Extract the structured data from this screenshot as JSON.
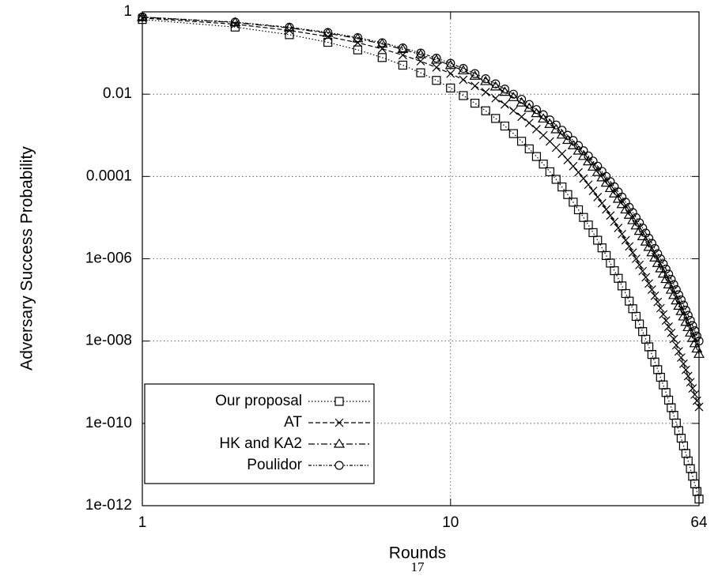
{
  "chart_data": {
    "type": "line",
    "x_label": "Rounds",
    "y_label": "Adversary Success Probability",
    "page_number": "17",
    "log_x": true,
    "log_y": true,
    "grid": true,
    "legend_position": "lower left",
    "xlim": [
      1,
      64
    ],
    "xticks": [
      1,
      10,
      64
    ],
    "ylim": [
      1e-12,
      1
    ],
    "yticks": [
      1,
      0.01,
      0.0001,
      {
        "value": 1e-06,
        "label": "1e-006"
      },
      {
        "value": 1e-08,
        "label": "1e-008"
      },
      {
        "value": 1e-10,
        "label": "1e-010"
      },
      {
        "value": 1e-12,
        "label": "1e-012"
      }
    ],
    "x": [
      1,
      2,
      3,
      4,
      5,
      6,
      7,
      8,
      9,
      10,
      11,
      12,
      13,
      14,
      15,
      16,
      17,
      18,
      19,
      20,
      21,
      22,
      23,
      24,
      25,
      26,
      27,
      28,
      29,
      30,
      31,
      32,
      33,
      34,
      35,
      36,
      37,
      38,
      39,
      40,
      41,
      42,
      43,
      44,
      45,
      46,
      47,
      48,
      49,
      50,
      51,
      52,
      53,
      54,
      55,
      56,
      57,
      58,
      59,
      60,
      61,
      62,
      63,
      64
    ],
    "series": [
      {
        "name": "Our proposal",
        "color": "#000000",
        "dash": "1.5 2.5",
        "marker": "square",
        "values": [
          0.653,
          0.427,
          0.279,
          0.182,
          0.119,
          0.0776,
          0.0507,
          0.0331,
          0.0216,
          0.0141,
          0.00923,
          0.00603,
          0.00394,
          0.00257,
          0.00168,
          0.0011,
          0.000716,
          0.000468,
          0.000305,
          0.0002,
          0.00013,
          8.51e-05,
          5.56e-05,
          3.63e-05,
          2.37e-05,
          1.55e-05,
          1.01e-05,
          6.61e-06,
          4.32e-06,
          2.82e-06,
          1.84e-06,
          1.2e-06,
          7.85e-07,
          5.13e-07,
          3.35e-07,
          2.19e-07,
          1.43e-07,
          9.33e-08,
          6.1e-08,
          3.98e-08,
          2.6e-08,
          1.7e-08,
          1.11e-08,
          7.24e-09,
          4.73e-09,
          3.09e-09,
          2.02e-09,
          1.32e-09,
          8.61e-10,
          5.62e-10,
          3.67e-10,
          2.4e-10,
          1.57e-10,
          1.02e-10,
          6.68e-11,
          4.37e-11,
          2.85e-11,
          1.86e-11,
          1.22e-11,
          7.94e-12,
          5.19e-12,
          3.39e-12,
          2.21e-12,
          1.45e-12
        ]
      },
      {
        "name": "AT",
        "color": "#000000",
        "dash": "6 3",
        "marker": "cross",
        "values": [
          0.708,
          0.501,
          0.355,
          0.251,
          0.178,
          0.126,
          0.0891,
          0.0631,
          0.0447,
          0.0316,
          0.0224,
          0.0158,
          0.0112,
          0.00794,
          0.00562,
          0.00398,
          0.00282,
          0.002,
          0.00141,
          0.001,
          0.000708,
          0.000501,
          0.000355,
          0.000251,
          0.000178,
          0.000126,
          8.91e-05,
          6.31e-05,
          4.47e-05,
          3.16e-05,
          2.24e-05,
          1.58e-05,
          1.12e-05,
          7.94e-06,
          5.62e-06,
          3.98e-06,
          2.82e-06,
          2e-06,
          1.41e-06,
          1e-06,
          7.08e-07,
          5.01e-07,
          3.55e-07,
          2.51e-07,
          1.78e-07,
          1.26e-07,
          8.91e-08,
          6.31e-08,
          4.47e-08,
          3.16e-08,
          2.24e-08,
          1.58e-08,
          1.12e-08,
          7.94e-09,
          5.62e-09,
          3.98e-09,
          2.82e-09,
          2e-09,
          1.41e-09,
          1e-09,
          7.08e-10,
          5.01e-10,
          3.55e-10,
          2.51e-10
        ]
      },
      {
        "name": "HK and KA2",
        "color": "#000000",
        "dash": "8 3 2 3",
        "marker": "triangle",
        "values": [
          0.741,
          0.55,
          0.407,
          0.302,
          0.224,
          0.166,
          0.123,
          0.0912,
          0.0676,
          0.0501,
          0.0372,
          0.0275,
          0.0204,
          0.0151,
          0.0112,
          0.00832,
          0.00617,
          0.00457,
          0.00339,
          0.00251,
          0.00186,
          0.00138,
          0.00102,
          0.000759,
          0.000562,
          0.000417,
          0.000309,
          0.000229,
          0.00017,
          0.000126,
          9.33e-05,
          6.92e-05,
          5.13e-05,
          3.8e-05,
          2.82e-05,
          2.09e-05,
          1.55e-05,
          1.15e-05,
          8.51e-06,
          6.31e-06,
          4.68e-06,
          3.47e-06,
          2.57e-06,
          1.91e-06,
          1.41e-06,
          1.05e-06,
          7.76e-07,
          5.75e-07,
          4.27e-07,
          3.16e-07,
          2.34e-07,
          1.74e-07,
          1.29e-07,
          9.55e-08,
          7.08e-08,
          5.25e-08,
          3.89e-08,
          2.88e-08,
          2.14e-08,
          1.58e-08,
          1.17e-08,
          8.71e-09,
          6.46e-09,
          4.79e-09
        ]
      },
      {
        "name": "Poulidor",
        "color": "#000000",
        "dash": "4 2 1.5 2 1.5 2",
        "marker": "circle",
        "values": [
          0.75,
          0.562,
          0.422,
          0.316,
          0.237,
          0.178,
          0.133,
          0.1,
          0.075,
          0.0562,
          0.0422,
          0.0316,
          0.0237,
          0.0178,
          0.0133,
          0.01,
          0.0075,
          0.00562,
          0.00422,
          0.00316,
          0.00237,
          0.00178,
          0.00133,
          0.001,
          0.00075,
          0.000562,
          0.000422,
          0.000316,
          0.000237,
          0.000178,
          0.000133,
          0.0001,
          7.5e-05,
          5.62e-05,
          4.22e-05,
          3.16e-05,
          2.37e-05,
          1.78e-05,
          1.33e-05,
          1e-05,
          7.5e-06,
          5.62e-06,
          4.22e-06,
          3.16e-06,
          2.37e-06,
          1.78e-06,
          1.33e-06,
          1e-06,
          7.5e-07,
          5.62e-07,
          4.22e-07,
          3.16e-07,
          2.37e-07,
          1.78e-07,
          1.33e-07,
          1e-07,
          7.5e-08,
          5.62e-08,
          4.22e-08,
          3.16e-08,
          2.37e-08,
          1.78e-08,
          1.33e-08,
          1e-08
        ]
      }
    ]
  }
}
